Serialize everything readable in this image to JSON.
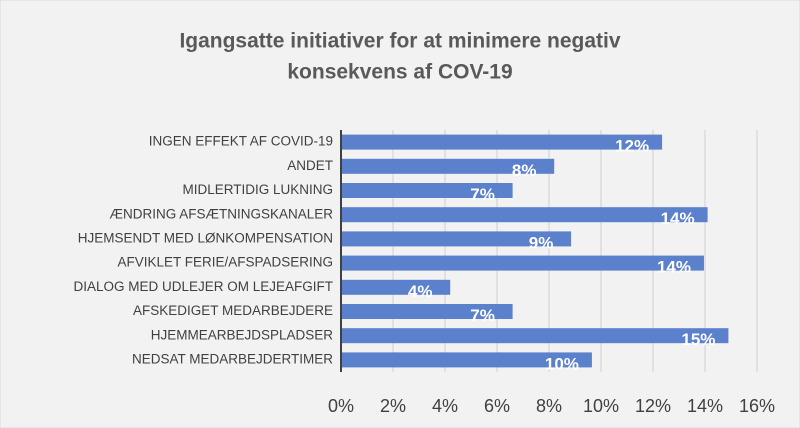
{
  "chart_data": {
    "type": "barh",
    "title": "Igangsatte initiativer for at minimere negativ",
    "subtitle": "konsekvens af COV-19",
    "categories": [
      "INGEN EFFEKT AF COVID-19",
      "ANDET",
      "MIDLERTIDIG LUKNING",
      "ÆNDRING AFSÆTNINGSKANALER",
      "HJEMSENDT MED LØNKOMPENSATION",
      "AFVIKLET FERIE/AFSPADSERING",
      "DIALOG MED UDLEJER OM LEJEAFGIFT",
      "AFSKEDIGET MEDARBEJDERE",
      "HJEMMEARBEJDSPLADSER",
      "NEDSAT MEDARBEJDERTIMER"
    ],
    "values": [
      12.35,
      8.2,
      6.6,
      14.1,
      8.85,
      13.96,
      4.2,
      6.6,
      14.9,
      9.65
    ],
    "value_labels": [
      "12%",
      "8%",
      "7%",
      "14%",
      "9%",
      "14%",
      "4%",
      "7%",
      "15%",
      "10%"
    ],
    "color": "#5b80cc",
    "xlim": [
      0,
      16
    ],
    "xticks": [
      {
        "value": 0,
        "label": "0%"
      },
      {
        "value": 2,
        "label": "2%"
      },
      {
        "value": 4,
        "label": "4%"
      },
      {
        "value": 6,
        "label": "6%"
      },
      {
        "value": 8,
        "label": "8%"
      },
      {
        "value": 10,
        "label": "10%"
      },
      {
        "value": 12,
        "label": "12%"
      },
      {
        "value": 14,
        "label": "14%"
      },
      {
        "value": 16,
        "label": "16%"
      }
    ],
    "grid": true
  }
}
